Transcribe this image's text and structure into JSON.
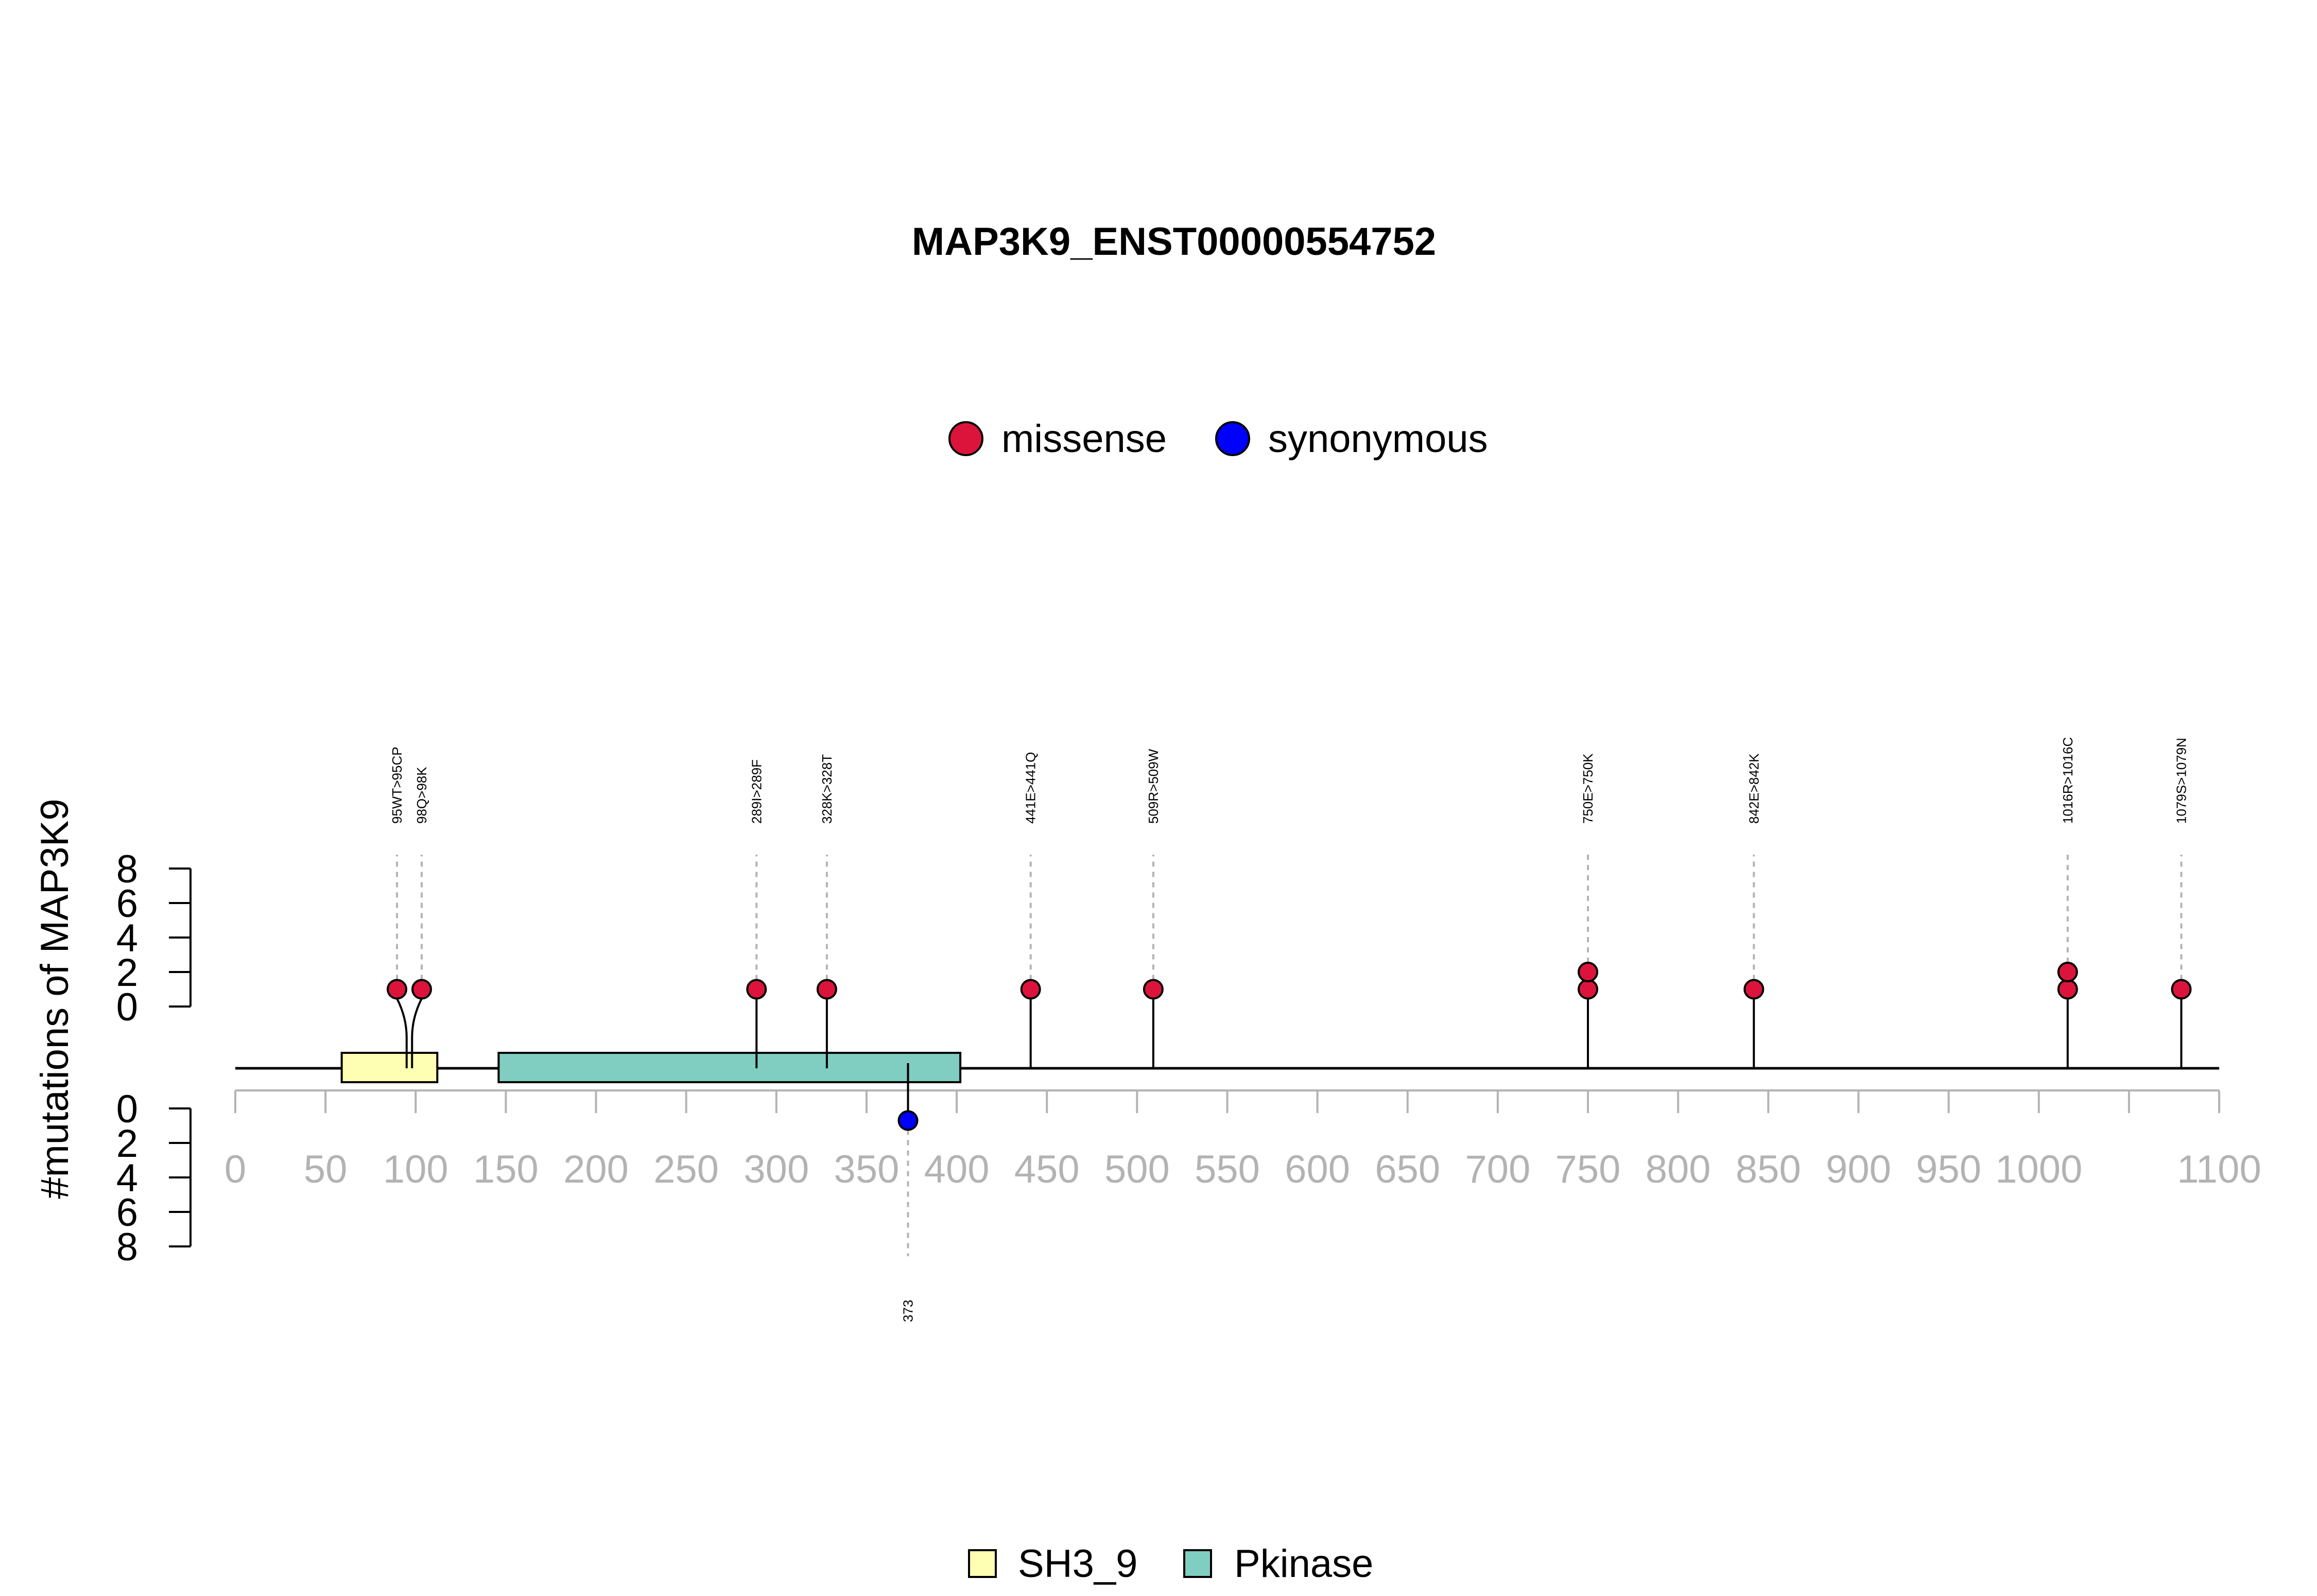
{
  "chart_data": {
    "type": "lollipop",
    "title": "MAP3K9_ENST00000554752",
    "ylabel": "#mutations of MAP3K9",
    "xlim": [
      0,
      1100
    ],
    "x_ticks": [
      "0",
      "50",
      "100",
      "150",
      "200",
      "250",
      "300",
      "350",
      "400",
      "450",
      "500",
      "550",
      "600",
      "650",
      "700",
      "750",
      "800",
      "850",
      "900",
      "950",
      "1000",
      "1100"
    ],
    "y_ticks_upper": [
      "0",
      "2",
      "4",
      "6",
      "8"
    ],
    "y_ticks_lower": [
      "0",
      "2",
      "4",
      "6",
      "8"
    ],
    "legend_mutations": [
      {
        "name": "missense",
        "color": "#dc143c"
      },
      {
        "name": "synonymous",
        "color": "#0000ff"
      }
    ],
    "legend_domains": [
      {
        "name": "SH3_9",
        "color": "#ffffb3"
      },
      {
        "name": "Pkinase",
        "color": "#80cdc1"
      }
    ],
    "domains": [
      {
        "name": "SH3_9",
        "start": 59,
        "end": 112,
        "color": "#ffffb3"
      },
      {
        "name": "Pkinase",
        "start": 146,
        "end": 402,
        "color": "#80cdc1"
      }
    ],
    "mutations_upper": [
      {
        "label": "95WT>95CP",
        "pos": 95,
        "count": 1,
        "type": "missense"
      },
      {
        "label": "98Q>98K",
        "pos": 98,
        "count": 1,
        "type": "missense"
      },
      {
        "label": "289I>289F",
        "pos": 289,
        "count": 1,
        "type": "missense"
      },
      {
        "label": "328K>328T",
        "pos": 328,
        "count": 1,
        "type": "missense"
      },
      {
        "label": "441E>441Q",
        "pos": 441,
        "count": 1,
        "type": "missense"
      },
      {
        "label": "509R>509W",
        "pos": 509,
        "count": 1,
        "type": "missense"
      },
      {
        "label": "750E>750K",
        "pos": 750,
        "count": 2,
        "type": "missense"
      },
      {
        "label": "842E>842K",
        "pos": 842,
        "count": 1,
        "type": "missense"
      },
      {
        "label": "1016R>1016C",
        "pos": 1016,
        "count": 2,
        "type": "missense"
      },
      {
        "label": "1079S>1079N",
        "pos": 1079,
        "count": 1,
        "type": "missense"
      }
    ],
    "mutations_lower": [
      {
        "label": "373",
        "pos": 373,
        "count": 1,
        "type": "synonymous"
      }
    ]
  }
}
